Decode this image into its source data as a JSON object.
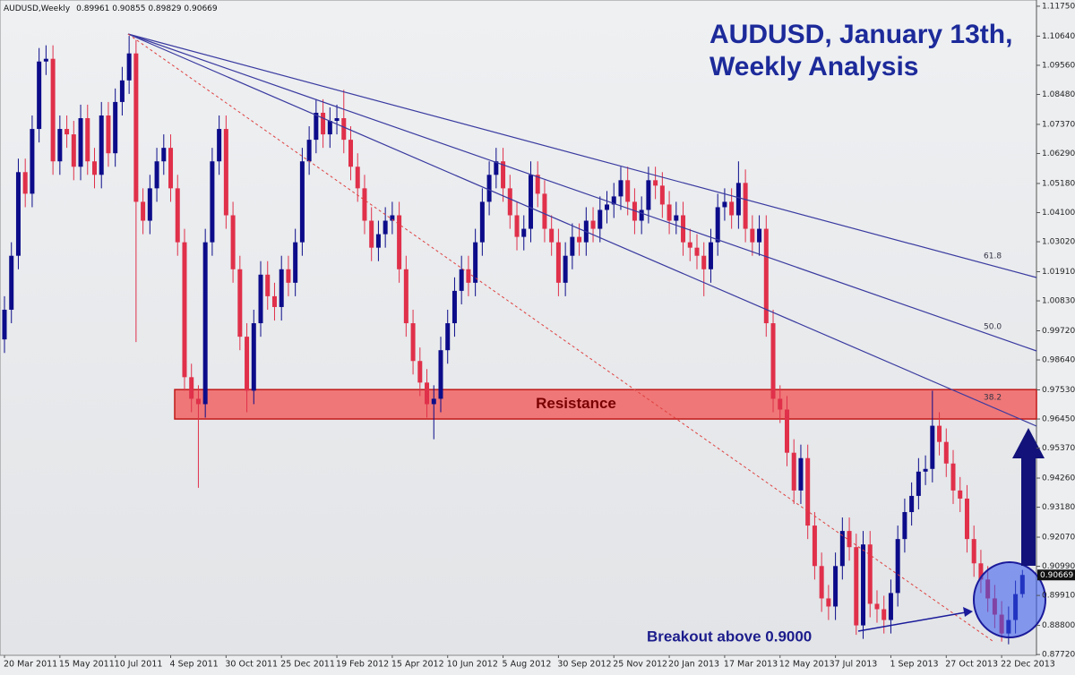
{
  "chart_data": {
    "type": "candlestick",
    "symbol": "AUDUSD,Weekly",
    "title_lines": [
      "AUDUSD, January 13th,",
      "Weekly Analysis"
    ],
    "annotations": {
      "zone": "Resistance",
      "breakout": "Breakout above 0.9000",
      "fib": [
        "61.8",
        "50.0",
        "38.2"
      ]
    },
    "resistance_zone": [
      0.9645,
      0.9754
    ],
    "up_color": "#0c0c8a",
    "down_color": "#e0304a",
    "categories": [
      "20 Mar 2011",
      null,
      null,
      null,
      null,
      null,
      null,
      null,
      "15 May 2011",
      null,
      null,
      null,
      null,
      null,
      null,
      null,
      "10 Jul 2011",
      null,
      null,
      null,
      null,
      null,
      null,
      null,
      "4 Sep 2011",
      null,
      null,
      null,
      null,
      null,
      null,
      null,
      "30 Oct 2011",
      null,
      null,
      null,
      null,
      null,
      null,
      null,
      "25 Dec 2011",
      null,
      null,
      null,
      null,
      null,
      null,
      null,
      "19 Feb 2012",
      null,
      null,
      null,
      null,
      null,
      null,
      null,
      "15 Apr 2012",
      null,
      null,
      null,
      null,
      null,
      null,
      null,
      "10 Jun 2012",
      null,
      null,
      null,
      null,
      null,
      null,
      null,
      "5 Aug 2012",
      null,
      null,
      null,
      null,
      null,
      null,
      null,
      "30 Sep 2012",
      null,
      null,
      null,
      null,
      null,
      null,
      null,
      "25 Nov 2012",
      null,
      null,
      null,
      null,
      null,
      null,
      null,
      "20 Jan 2013",
      null,
      null,
      null,
      null,
      null,
      null,
      null,
      "17 Mar 2013",
      null,
      null,
      null,
      null,
      null,
      null,
      null,
      "12 May 2013",
      null,
      null,
      null,
      null,
      null,
      null,
      null,
      "7 Jul 2013",
      null,
      null,
      null,
      null,
      null,
      null,
      null,
      "1 Sep 2013",
      null,
      null,
      null,
      null,
      null,
      null,
      null,
      "27 Oct 2013",
      null,
      null,
      null,
      null,
      null,
      null,
      null,
      "22 Dec 2013",
      null,
      null,
      null
    ],
    "open": [
      0.994,
      1.005,
      1.025,
      1.056,
      1.048,
      1.072,
      1.097,
      1.098,
      1.06,
      1.072,
      1.07,
      1.058,
      1.076,
      1.06,
      1.055,
      1.077,
      1.063,
      1.082,
      1.09,
      1.1,
      1.045,
      1.038,
      1.05,
      1.06,
      1.065,
      1.05,
      1.03,
      0.98,
      0.972,
      0.97,
      1.03,
      1.06,
      1.072,
      1.04,
      1.02,
      0.995,
      0.975,
      1.0,
      1.018,
      1.01,
      1.006,
      1.02,
      1.015,
      1.03,
      1.06,
      1.068,
      1.078,
      1.07,
      1.075,
      1.076,
      1.068,
      1.058,
      1.05,
      1.038,
      1.028,
      1.033,
      1.038,
      1.04,
      1.02,
      1.0,
      0.986,
      0.978,
      0.97,
      0.972,
      0.99,
      1.0,
      1.012,
      1.02,
      1.015,
      1.03,
      1.045,
      1.055,
      1.06,
      1.05,
      1.04,
      1.032,
      1.035,
      1.055,
      1.048,
      1.035,
      1.03,
      1.015,
      1.025,
      1.032,
      1.03,
      1.038,
      1.035,
      1.042,
      1.044,
      1.047,
      1.053,
      1.045,
      1.038,
      1.042,
      1.053,
      1.051,
      1.044,
      1.038,
      1.04,
      1.03,
      1.028,
      1.025,
      1.02,
      1.03,
      1.043,
      1.045,
      1.04,
      1.052,
      1.035,
      1.03,
      1.035,
      1.0,
      0.972,
      0.968,
      0.952,
      0.938,
      0.95,
      0.925,
      0.91,
      0.898,
      0.895,
      0.91,
      0.923,
      0.917,
      0.888,
      0.918,
      0.896,
      0.894,
      0.89,
      0.9,
      0.92,
      0.93,
      0.936,
      0.945,
      0.946,
      0.962,
      0.956,
      0.948,
      0.938,
      0.935,
      0.92,
      0.911,
      0.905,
      0.898,
      0.892,
      0.885,
      0.89,
      0.89961
    ],
    "high": [
      1.01,
      1.03,
      1.061,
      1.061,
      1.077,
      1.102,
      1.103,
      1.103,
      1.077,
      1.077,
      1.075,
      1.081,
      1.081,
      1.065,
      1.082,
      1.082,
      1.087,
      1.095,
      1.1065,
      1.105,
      1.05,
      1.055,
      1.065,
      1.07,
      1.07,
      1.055,
      1.035,
      0.985,
      0.977,
      1.035,
      1.065,
      1.077,
      1.077,
      1.045,
      1.025,
      1.0,
      1.005,
      1.023,
      1.023,
      1.015,
      1.025,
      1.025,
      1.035,
      1.065,
      1.073,
      1.083,
      1.083,
      1.08,
      1.081,
      1.0865,
      1.073,
      1.063,
      1.055,
      1.043,
      1.038,
      1.043,
      1.045,
      1.045,
      1.025,
      1.005,
      0.991,
      0.983,
      0.977,
      0.995,
      1.005,
      1.017,
      1.025,
      1.025,
      1.035,
      1.05,
      1.06,
      1.065,
      1.065,
      1.055,
      1.045,
      1.04,
      1.06,
      1.06,
      1.053,
      1.04,
      1.035,
      1.03,
      1.037,
      1.037,
      1.043,
      1.043,
      1.047,
      1.049,
      1.052,
      1.058,
      1.058,
      1.05,
      1.047,
      1.058,
      1.058,
      1.056,
      1.049,
      1.045,
      1.045,
      1.035,
      1.033,
      1.03,
      1.035,
      1.048,
      1.05,
      1.05,
      1.06,
      1.057,
      1.04,
      1.04,
      1.04,
      1.005,
      0.977,
      0.973,
      0.957,
      0.955,
      0.955,
      0.93,
      0.915,
      0.903,
      0.915,
      0.928,
      0.928,
      0.922,
      0.923,
      0.923,
      0.901,
      0.899,
      0.905,
      0.925,
      0.935,
      0.941,
      0.95,
      0.951,
      0.975,
      0.967,
      0.961,
      0.953,
      0.943,
      0.94,
      0.925,
      0.916,
      0.91,
      0.903,
      0.897,
      0.895,
      0.9046,
      0.90855
    ],
    "low": [
      0.989,
      1.0,
      1.02,
      1.043,
      1.043,
      1.067,
      1.092,
      1.055,
      1.055,
      1.065,
      1.053,
      1.053,
      1.055,
      1.05,
      1.05,
      1.058,
      1.058,
      1.077,
      1.085,
      0.993,
      1.033,
      1.033,
      1.045,
      1.055,
      1.045,
      1.025,
      0.975,
      0.967,
      0.939,
      0.965,
      1.025,
      1.055,
      1.035,
      1.015,
      0.99,
      0.967,
      0.97,
      0.995,
      1.005,
      1.001,
      1.001,
      1.01,
      1.01,
      1.025,
      1.055,
      1.063,
      1.065,
      1.065,
      1.07,
      1.063,
      1.053,
      1.045,
      1.033,
      1.023,
      1.023,
      1.028,
      1.033,
      1.015,
      0.995,
      0.981,
      0.973,
      0.965,
      0.957,
      0.967,
      0.985,
      0.995,
      1.007,
      1.01,
      1.01,
      1.025,
      1.04,
      1.05,
      1.045,
      1.035,
      1.027,
      1.027,
      1.03,
      1.043,
      1.03,
      1.025,
      1.01,
      1.01,
      1.02,
      1.025,
      1.025,
      1.03,
      1.03,
      1.037,
      1.039,
      1.042,
      1.04,
      1.033,
      1.033,
      1.037,
      1.046,
      1.039,
      1.033,
      1.033,
      1.025,
      1.023,
      1.02,
      1.01,
      1.015,
      1.025,
      1.038,
      1.035,
      1.035,
      1.03,
      1.025,
      1.025,
      0.995,
      0.967,
      0.963,
      0.947,
      0.933,
      0.933,
      0.92,
      0.905,
      0.893,
      0.89,
      0.89,
      0.905,
      0.912,
      0.8845,
      0.883,
      0.891,
      0.889,
      0.885,
      0.885,
      0.895,
      0.915,
      0.925,
      0.931,
      0.94,
      0.941,
      0.951,
      0.943,
      0.933,
      0.93,
      0.915,
      0.906,
      0.9,
      0.893,
      0.887,
      0.882,
      0.881,
      0.885,
      0.89829
    ],
    "close": [
      1.005,
      1.025,
      1.056,
      1.048,
      1.072,
      1.097,
      1.098,
      1.06,
      1.072,
      1.07,
      1.058,
      1.076,
      1.06,
      1.055,
      1.077,
      1.063,
      1.082,
      1.09,
      1.1,
      1.045,
      1.038,
      1.05,
      1.06,
      1.065,
      1.05,
      1.03,
      0.98,
      0.972,
      0.97,
      1.03,
      1.06,
      1.072,
      1.04,
      1.02,
      0.995,
      0.975,
      1.0,
      1.018,
      1.01,
      1.006,
      1.02,
      1.015,
      1.03,
      1.06,
      1.068,
      1.078,
      1.07,
      1.075,
      1.076,
      1.068,
      1.058,
      1.05,
      1.038,
      1.028,
      1.033,
      1.038,
      1.04,
      1.02,
      1.0,
      0.986,
      0.978,
      0.97,
      0.972,
      0.99,
      1.0,
      1.012,
      1.02,
      1.015,
      1.03,
      1.045,
      1.055,
      1.06,
      1.05,
      1.04,
      1.032,
      1.035,
      1.055,
      1.048,
      1.035,
      1.03,
      1.015,
      1.025,
      1.032,
      1.03,
      1.038,
      1.035,
      1.042,
      1.044,
      1.047,
      1.053,
      1.045,
      1.038,
      1.042,
      1.053,
      1.051,
      1.044,
      1.038,
      1.04,
      1.03,
      1.028,
      1.025,
      1.02,
      1.03,
      1.043,
      1.045,
      1.04,
      1.052,
      1.035,
      1.03,
      1.035,
      1.0,
      0.972,
      0.968,
      0.952,
      0.938,
      0.95,
      0.925,
      0.91,
      0.898,
      0.895,
      0.91,
      0.923,
      0.917,
      0.888,
      0.918,
      0.896,
      0.894,
      0.89,
      0.9,
      0.92,
      0.93,
      0.936,
      0.945,
      0.946,
      0.962,
      0.956,
      0.948,
      0.938,
      0.935,
      0.92,
      0.911,
      0.905,
      0.898,
      0.892,
      0.885,
      0.89,
      0.89961,
      0.90669
    ],
    "ylim": [
      0.8726,
      1.1198
    ],
    "yticks": [
      {
        "value": 1.1175,
        "label": "1.11750"
      },
      {
        "value": 1.1064,
        "label": "1.10640"
      },
      {
        "value": 1.0956,
        "label": "1.09560"
      },
      {
        "value": 1.0848,
        "label": "1.08480"
      },
      {
        "value": 1.0737,
        "label": "1.07370"
      },
      {
        "value": 1.0629,
        "label": "1.06290"
      },
      {
        "value": 1.0518,
        "label": "1.05180"
      },
      {
        "value": 1.041,
        "label": "1.04100"
      },
      {
        "value": 1.0302,
        "label": "1.03020"
      },
      {
        "value": 1.0191,
        "label": "1.01910"
      },
      {
        "value": 1.0083,
        "label": "1.00830"
      },
      {
        "value": 0.9972,
        "label": "0.99720"
      },
      {
        "value": 0.9864,
        "label": "0.98640"
      },
      {
        "value": 0.9753,
        "label": "0.97530"
      },
      {
        "value": 0.9645,
        "label": "0.96450"
      },
      {
        "value": 0.9537,
        "label": "0.95370"
      },
      {
        "value": 0.9426,
        "label": "0.94260"
      },
      {
        "value": 0.9318,
        "label": "0.93180"
      },
      {
        "value": 0.9207,
        "label": "0.92070"
      },
      {
        "value": 0.9099,
        "label": "0.90990"
      },
      {
        "value": 0.8991,
        "label": "0.89910"
      },
      {
        "value": 0.888,
        "label": "0.88800"
      },
      {
        "value": 0.8772,
        "label": "0.87720"
      }
    ]
  }
}
